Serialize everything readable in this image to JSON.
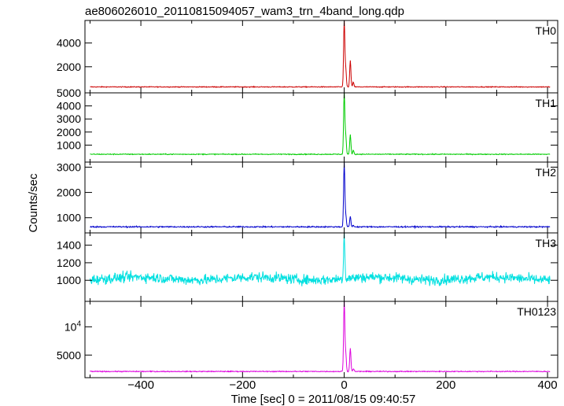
{
  "chart_data": {
    "type": "line",
    "title": "ae806026010_20110815094057_wam3_trn_4band_long.qdp",
    "xlabel": "Time [sec] 0 = 2011/08/15 09:40:57",
    "ylabel": "Counts/sec",
    "xlim": [
      -510,
      420
    ],
    "x_ticks": [
      -400,
      -200,
      0,
      200,
      400
    ],
    "x_tick_labels": [
      "−400",
      "−200",
      "0",
      "200",
      "400"
    ],
    "grid": false,
    "panels": [
      {
        "name": "TH0",
        "color": "#cc0000",
        "ylim": [
          -200,
          5900
        ],
        "y_ticks": [
          2000,
          4000
        ],
        "y_tick_labels": [
          "2000",
          "4000"
        ],
        "baseline": 300,
        "noise": 25,
        "peaks": [
          {
            "x": 0,
            "y": 5900
          },
          {
            "x": 3,
            "y": 1800
          },
          {
            "x": 12,
            "y": 2500
          },
          {
            "x": 18,
            "y": 700
          }
        ]
      },
      {
        "name": "TH1",
        "color": "#00cc00",
        "ylim": [
          -300,
          5000
        ],
        "y_ticks": [
          1000,
          2000,
          3000,
          4000,
          5000
        ],
        "y_tick_labels": [
          "1000",
          "2000",
          "3000",
          "4000",
          "5000"
        ],
        "baseline": 300,
        "noise": 25,
        "peaks": [
          {
            "x": 0,
            "y": 5000
          },
          {
            "x": 3,
            "y": 1700
          },
          {
            "x": 12,
            "y": 1800
          },
          {
            "x": 18,
            "y": 600
          }
        ]
      },
      {
        "name": "TH2",
        "color": "#0000cc",
        "ylim": [
          400,
          3200
        ],
        "y_ticks": [
          1000,
          2000,
          3000
        ],
        "y_tick_labels": [
          "1000",
          "2000",
          "3000"
        ],
        "baseline": 640,
        "noise": 18,
        "peaks": [
          {
            "x": 0,
            "y": 3150
          },
          {
            "x": 3,
            "y": 1100
          },
          {
            "x": 12,
            "y": 1050
          },
          {
            "x": 18,
            "y": 700
          }
        ]
      },
      {
        "name": "TH3",
        "color": "#00e0e0",
        "ylim": [
          760,
          1540
        ],
        "y_ticks": [
          1000,
          1200,
          1400
        ],
        "y_tick_labels": [
          "1000",
          "1200",
          "1400"
        ],
        "baseline": 1020,
        "noise": 42,
        "peaks": [
          {
            "x": 0,
            "y": 1540
          }
        ]
      },
      {
        "name": "TH0123",
        "color": "#dd00dd",
        "ylim": [
          1000,
          14500
        ],
        "y_ticks": [
          5000,
          10000
        ],
        "y_tick_labels": [
          "5000",
          "10^4"
        ],
        "baseline": 2100,
        "noise": 60,
        "peaks": [
          {
            "x": 0,
            "y": 14500
          },
          {
            "x": 3,
            "y": 5200
          },
          {
            "x": 12,
            "y": 6200
          },
          {
            "x": 18,
            "y": 2600
          }
        ]
      }
    ]
  }
}
